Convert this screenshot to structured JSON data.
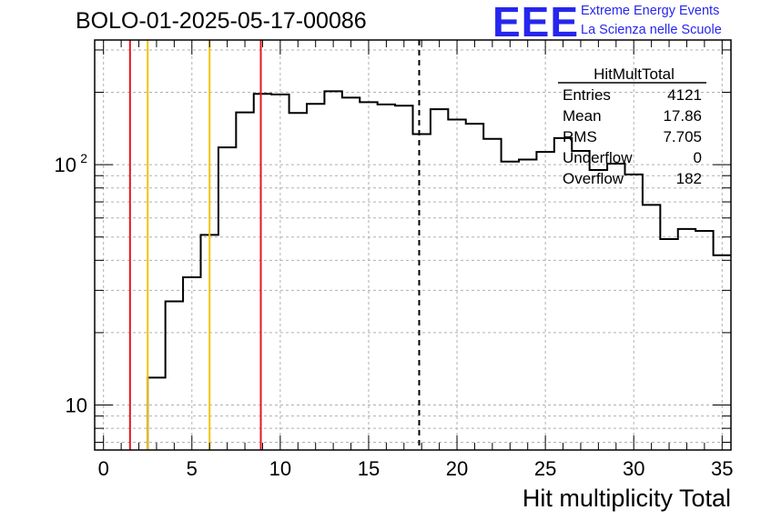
{
  "header": {
    "title": "BOLO-01-2025-05-17-00086",
    "logo_text": "EEE",
    "logo_line1": "Extreme Energy Events",
    "logo_line2": "La Scienza nelle Scuole"
  },
  "stats": {
    "name": "HitMultTotal",
    "rows": [
      {
        "label": "Entries",
        "value": "4121"
      },
      {
        "label": "Mean",
        "value": "17.86"
      },
      {
        "label": "RMS",
        "value": "7.705"
      },
      {
        "label": "Underflow",
        "value": "0"
      },
      {
        "label": "Overflow",
        "value": "182"
      }
    ]
  },
  "colors": {
    "histogram": "#000000",
    "red_line": "#e8141e",
    "yellow_line": "#f2c200",
    "grid": "#b0b0b0",
    "logo": "#2626ee"
  },
  "chart_data": {
    "type": "histogram",
    "xlabel": "Hit multiplicity Total",
    "ylabel": "",
    "xlim": [
      -0.5,
      35.5
    ],
    "ylim": [
      6.5,
      330
    ],
    "log_y": true,
    "grid": true,
    "x_ticks": [
      "0",
      "5",
      "10",
      "15",
      "20",
      "25",
      "30",
      "35"
    ],
    "y_ticks": [
      {
        "value": 10,
        "label": "10"
      },
      {
        "value": 100,
        "label": "10",
        "exponent": "2"
      }
    ],
    "bins": {
      "edges_start": 2.5,
      "width": 1,
      "values": [
        13,
        27,
        34,
        51,
        118,
        165,
        197,
        196,
        164,
        179,
        202,
        190,
        182,
        178,
        176,
        134,
        170,
        154,
        148,
        128,
        103,
        105,
        113,
        129,
        114,
        95,
        101,
        91,
        68,
        49,
        54,
        53,
        42
      ]
    },
    "vertical_lines": [
      {
        "x": 1.5,
        "color": "red"
      },
      {
        "x": 8.9,
        "color": "red"
      },
      {
        "x": 2.5,
        "color": "yellow"
      },
      {
        "x": 6.0,
        "color": "yellow"
      },
      {
        "x": 17.86,
        "color": "black",
        "style": "dashed"
      }
    ]
  }
}
